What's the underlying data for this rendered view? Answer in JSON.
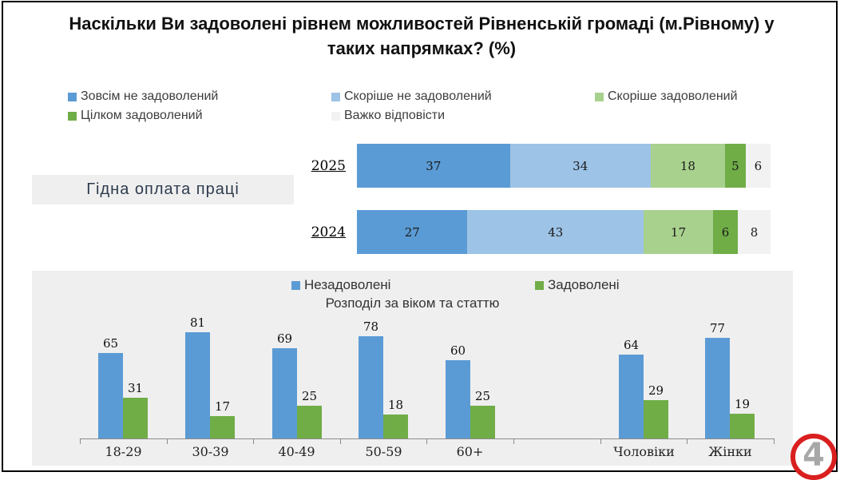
{
  "title": "Наскільки Ви задоволені рівнем можливостей Рівненській громаді (м.Рівному) у таких напрямках? (%)",
  "colors": {
    "strong_dissatisfied": "#5b9bd5",
    "rather_dissatisfied": "#9dc3e6",
    "rather_satisfied": "#a9d18e",
    "fully_satisfied": "#70ad47",
    "hard_to_answer": "#f2f2f2",
    "panel_background": "#efefef",
    "logo_red": "#d91f1f"
  },
  "chart_data": [
    {
      "type": "stacked_bar_horizontal",
      "title": "Гідна оплата праці",
      "unit": "%",
      "rows": [
        "2025",
        "2024"
      ],
      "series": [
        {
          "name": "Зовсім не задоволений",
          "color": "#5b9bd5",
          "values": [
            37,
            27
          ]
        },
        {
          "name": "Скоріше не задоволений",
          "color": "#9dc3e6",
          "values": [
            34,
            43
          ]
        },
        {
          "name": "Скоріше задоволений",
          "color": "#a9d18e",
          "values": [
            18,
            17
          ]
        },
        {
          "name": "Цілком задоволений",
          "color": "#70ad47",
          "values": [
            5,
            6
          ]
        },
        {
          "name": "Важко відповісти",
          "color": "#f2f2f2",
          "values": [
            6,
            8
          ]
        }
      ],
      "legend_position": "top"
    },
    {
      "type": "bar",
      "title": "Розподіл за віком та статтю",
      "unit": "%",
      "categories": [
        "18-29",
        "30-39",
        "40-49",
        "50-59",
        "60+",
        "",
        "Чоловіки",
        "Жінки"
      ],
      "series": [
        {
          "name": "Незадоволені",
          "color": "#5b9bd5",
          "values": [
            65,
            81,
            69,
            78,
            60,
            null,
            64,
            77
          ]
        },
        {
          "name": "Задоволені",
          "color": "#70ad47",
          "values": [
            31,
            17,
            25,
            18,
            25,
            null,
            29,
            19
          ]
        }
      ],
      "ylim": [
        0,
        100
      ],
      "grid": false,
      "legend_position": "top"
    }
  ],
  "logo": {
    "glyph": "4"
  }
}
